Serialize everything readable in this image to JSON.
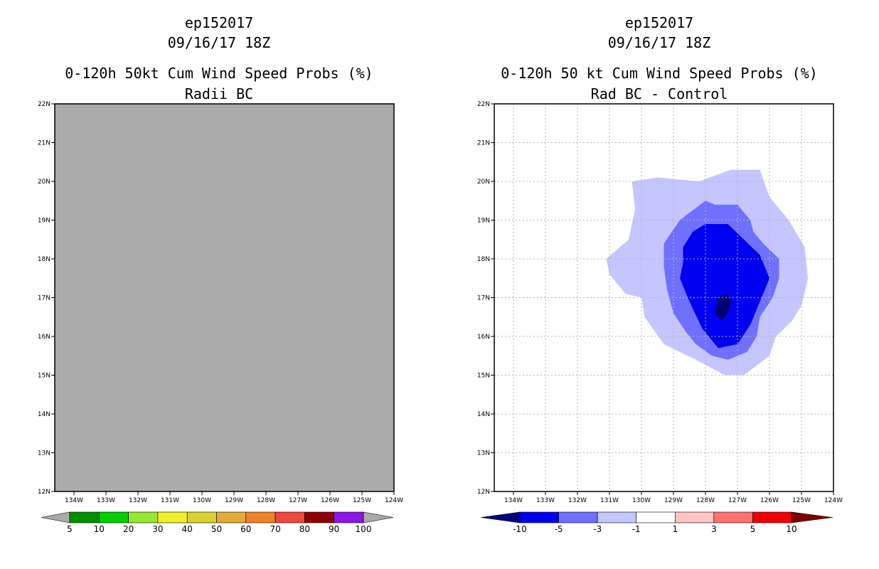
{
  "panels": [
    {
      "id": "left",
      "title_lines": [
        "ep152017",
        "09/16/17 18Z",
        "0-120h 50kt Cum Wind Speed Probs (%)",
        "Radii BC"
      ],
      "background_fill": "#aaaaaa",
      "grid": false
    },
    {
      "id": "right",
      "title_lines": [
        "ep152017",
        "09/16/17 18Z",
        "0-120h 50 kt Cum Wind Speed Probs (%)",
        "Rad BC - Control"
      ],
      "background_fill": "#ffffff",
      "grid": true
    }
  ],
  "chart_data": [
    {
      "type": "contour-map",
      "title": "0-120h 50kt Cum Wind Speed Probs (%)",
      "subtitle": "Radii BC",
      "storm": "ep152017",
      "valid": "09/16/17 18Z",
      "x_tick_labels": [
        "134W",
        "133W",
        "132W",
        "131W",
        "130W",
        "129W",
        "128W",
        "127W",
        "126W",
        "125W",
        "124W"
      ],
      "y_tick_labels": [
        "12N",
        "13N",
        "14N",
        "15N",
        "16N",
        "17N",
        "18N",
        "19N",
        "20N",
        "21N",
        "22N"
      ],
      "xlim": [
        -134.6,
        -124
      ],
      "ylim": [
        12,
        22
      ],
      "field_value_everywhere": "undefined (gray fill)",
      "colorbar": {
        "labels": [
          "5",
          "10",
          "20",
          "30",
          "40",
          "50",
          "60",
          "70",
          "80",
          "90",
          "100"
        ],
        "colors": [
          "#008f00",
          "#00cf00",
          "#96e632",
          "#f0f028",
          "#dcd22d",
          "#e6aa32",
          "#f08228",
          "#f0463c",
          "#8c0000",
          "#8c14e6"
        ],
        "end_arrow_color": "#aaaaaa"
      }
    },
    {
      "type": "contour-map",
      "title": "0-120h 50 kt Cum Wind Speed Probs (%)",
      "subtitle": "Rad BC - Control",
      "storm": "ep152017",
      "valid": "09/16/17 18Z",
      "x_tick_labels": [
        "134W",
        "133W",
        "132W",
        "131W",
        "130W",
        "129W",
        "128W",
        "127W",
        "126W",
        "125W",
        "124W"
      ],
      "y_tick_labels": [
        "12N",
        "13N",
        "14N",
        "15N",
        "16N",
        "17N",
        "18N",
        "19N",
        "20N",
        "21N",
        "22N"
      ],
      "xlim": [
        -134.6,
        -124
      ],
      "ylim": [
        12,
        22
      ],
      "grid": "dotted",
      "contours": [
        {
          "level": "-1 to -3",
          "color": "#c6c6ff",
          "lonlat": [
            [
              -131.1,
              18.0
            ],
            [
              -130.4,
              18.5
            ],
            [
              -130.2,
              19.3
            ],
            [
              -130.3,
              20.0
            ],
            [
              -129.5,
              20.1
            ],
            [
              -128.2,
              20.0
            ],
            [
              -127.2,
              20.3
            ],
            [
              -126.3,
              20.3
            ],
            [
              -126.0,
              19.6
            ],
            [
              -125.4,
              19.0
            ],
            [
              -124.9,
              18.3
            ],
            [
              -124.8,
              17.5
            ],
            [
              -125.0,
              16.8
            ],
            [
              -125.3,
              16.4
            ],
            [
              -125.8,
              16.0
            ],
            [
              -126.0,
              15.5
            ],
            [
              -126.8,
              15.0
            ],
            [
              -127.4,
              15.0
            ],
            [
              -128.3,
              15.4
            ],
            [
              -129.3,
              15.8
            ],
            [
              -129.9,
              16.5
            ],
            [
              -130.0,
              17.0
            ],
            [
              -130.5,
              17.1
            ],
            [
              -131.0,
              17.6
            ]
          ]
        },
        {
          "level": "-3 to -5",
          "color": "#7070ff",
          "lonlat": [
            [
              -129.3,
              18.4
            ],
            [
              -128.8,
              19.0
            ],
            [
              -128.0,
              19.5
            ],
            [
              -127.7,
              19.4
            ],
            [
              -127.0,
              19.4
            ],
            [
              -126.6,
              19.0
            ],
            [
              -126.5,
              18.7
            ],
            [
              -126.2,
              18.4
            ],
            [
              -125.7,
              18.0
            ],
            [
              -125.7,
              17.5
            ],
            [
              -125.9,
              17.0
            ],
            [
              -126.3,
              16.5
            ],
            [
              -126.4,
              16.0
            ],
            [
              -126.7,
              15.6
            ],
            [
              -127.3,
              15.4
            ],
            [
              -127.8,
              15.5
            ],
            [
              -128.3,
              15.8
            ],
            [
              -128.6,
              16.1
            ],
            [
              -129.0,
              16.6
            ],
            [
              -129.2,
              17.2
            ],
            [
              -129.3,
              17.8
            ]
          ]
        },
        {
          "level": "-5 to -10",
          "color": "#0000f0",
          "lonlat": [
            [
              -128.7,
              18.3
            ],
            [
              -128.4,
              18.7
            ],
            [
              -128.0,
              18.9
            ],
            [
              -127.3,
              18.9
            ],
            [
              -126.8,
              18.5
            ],
            [
              -126.3,
              18.1
            ],
            [
              -126.0,
              17.5
            ],
            [
              -126.3,
              16.9
            ],
            [
              -126.6,
              16.3
            ],
            [
              -127.0,
              15.8
            ],
            [
              -127.6,
              15.7
            ],
            [
              -128.1,
              16.2
            ],
            [
              -128.5,
              16.9
            ],
            [
              -128.8,
              17.5
            ],
            [
              -128.7,
              17.9
            ]
          ]
        },
        {
          "level": "below -10",
          "color": "#000070",
          "lonlat": [
            [
              -127.6,
              17.0
            ],
            [
              -127.3,
              17.1
            ],
            [
              -127.2,
              16.9
            ],
            [
              -127.3,
              16.6
            ],
            [
              -127.5,
              16.4
            ],
            [
              -127.7,
              16.6
            ]
          ]
        }
      ],
      "colorbar": {
        "labels": [
          "-10",
          "-5",
          "-3",
          "-1",
          "1",
          "3",
          "5",
          "10"
        ],
        "colors": [
          "#0000f0",
          "#7070ff",
          "#c6c6ff",
          "#ffffff",
          "#ffc4c4",
          "#ff7070",
          "#f00000"
        ],
        "low_arrow_color": "#000080",
        "high_arrow_color": "#800000"
      }
    }
  ]
}
